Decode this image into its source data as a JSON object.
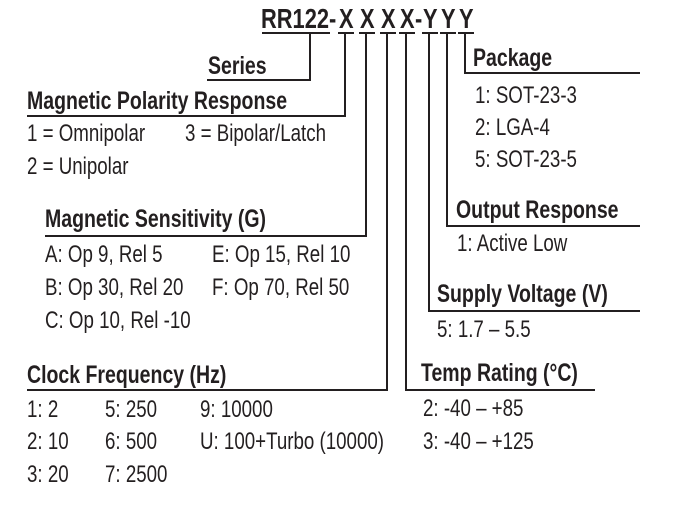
{
  "part_number": {
    "prefix": "RR122-",
    "chars": [
      "X",
      "X",
      "X",
      "X",
      "-",
      "Y",
      "Y",
      "Y"
    ]
  },
  "series": {
    "title": "Series"
  },
  "polarity": {
    "title": "Magnetic Polarity Response",
    "items": [
      "1 = Omnipolar",
      "3 = Bipolar/Latch",
      "2 = Unipolar"
    ]
  },
  "sensitivity": {
    "title": "Magnetic Sensitivity (G)",
    "items": [
      "A: Op 9, Rel 5",
      "E: Op 15, Rel 10",
      "B: Op 30, Rel 20",
      "F: Op 70, Rel 50",
      "C: Op 10, Rel -10"
    ]
  },
  "clock": {
    "title": "Clock Frequency (Hz)",
    "items": [
      "1: 2",
      "5: 250",
      "9: 10000",
      "2: 10",
      "6: 500",
      "U: 100+Turbo (10000)",
      "3: 20",
      "7: 2500"
    ]
  },
  "package": {
    "title": "Package",
    "items": [
      "1: SOT-23-3",
      "2: LGA-4",
      "5: SOT-23-5"
    ]
  },
  "output": {
    "title": "Output Response",
    "items": [
      "1: Active Low"
    ]
  },
  "supply": {
    "title": "Supply Voltage (V)",
    "items": [
      "5: 1.7 – 5.5"
    ]
  },
  "temp": {
    "title": "Temp Rating (°C)",
    "items": [
      "2: -40 – +85",
      "3: -40 – +125"
    ]
  },
  "colors": {
    "ink": "#231f20"
  }
}
